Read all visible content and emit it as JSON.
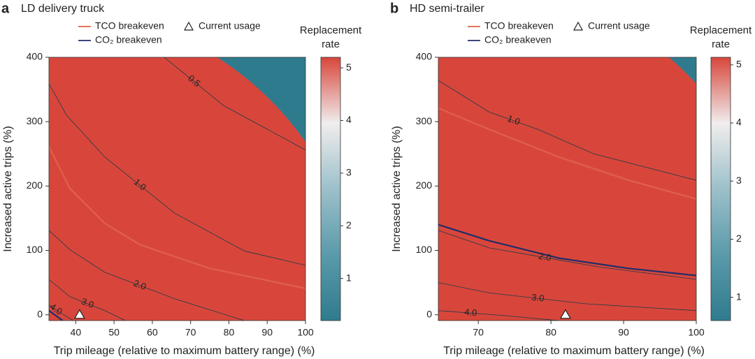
{
  "chart_data": [
    {
      "type": "contour",
      "panel_label": "a",
      "title": "LD delivery truck",
      "x_label": "Trip mileage (relative to maximum battery range) (%)",
      "y_label": "Increased active trips (%)",
      "xlim": [
        33,
        100
      ],
      "xticks": [
        40,
        50,
        60,
        70,
        80,
        90,
        100
      ],
      "ylim": [
        -9,
        400
      ],
      "yticks": [
        0,
        100,
        200,
        300,
        400
      ],
      "series": [
        {
          "name": "TCO breakeven",
          "color": "#e0604a",
          "x": [
            33,
            38.5,
            47.6,
            56.7,
            75,
            100
          ],
          "y": [
            261,
            196,
            142,
            109,
            72,
            41
          ]
        },
        {
          "name": "CO₂ breakeven",
          "color": "#1f2d6b",
          "x": [
            33,
            36.6
          ],
          "y": [
            6.5,
            -9
          ]
        }
      ],
      "contours": [
        {
          "label": "0.5",
          "x": [
            63.1,
            78.6,
            100
          ],
          "y": [
            400,
            325,
            256
          ]
        },
        {
          "label": "1.0",
          "x": [
            33,
            37.6,
            47.6,
            65.8,
            84.1,
            100
          ],
          "y": [
            359,
            310,
            245,
            158,
            99,
            77
          ]
        },
        {
          "label": "2.0",
          "x": [
            33,
            38.5,
            47.6,
            65.8,
            78.6,
            84
          ],
          "y": [
            131,
            101,
            66,
            25,
            1,
            -9
          ]
        },
        {
          "label": "3.0",
          "x": [
            33,
            38.5,
            47.6,
            53
          ],
          "y": [
            55,
            28,
            6.5,
            -9
          ]
        },
        {
          "label": "4.0",
          "x": [
            33,
            36.6,
            39.4
          ],
          "y": [
            15,
            1,
            -9
          ]
        }
      ],
      "marker": {
        "name": "Current usage",
        "x": 41,
        "y": 0
      },
      "colorbar": {
        "title": "Replacement rate",
        "lim": [
          0.2,
          5.2
        ],
        "ticks": [
          1,
          2,
          3,
          4,
          5
        ],
        "colors": [
          "#2f7b8e",
          "#5a9aaa",
          "#9cc0ca",
          "#f0eded",
          "#d8463b"
        ]
      }
    },
    {
      "type": "contour",
      "panel_label": "b",
      "title": "HD semi-trailer",
      "x_label": "Trip mileage (relative to maximum battery range) (%)",
      "y_label": "Increased active trips (%)",
      "xlim": [
        64.5,
        100
      ],
      "xticks": [
        70,
        80,
        90,
        100
      ],
      "ylim": [
        -9,
        400
      ],
      "yticks": [
        0,
        100,
        200,
        300,
        400
      ],
      "series": [
        {
          "name": "TCO breakeven",
          "color": "#e0604a",
          "x": [
            64.5,
            71.5,
            81.1,
            90.7,
            100
          ],
          "y": [
            321,
            288,
            245,
            209,
            180
          ]
        },
        {
          "name": "CO₂ breakeven",
          "color": "#1f2d6b",
          "x": [
            64.5,
            71.5,
            81.1,
            90.7,
            100
          ],
          "y": [
            140,
            115,
            88,
            72,
            61
          ]
        }
      ],
      "contours": [
        {
          "label": "1.0",
          "x": [
            64.5,
            71.5,
            78.2,
            85.9,
            100
          ],
          "y": [
            364,
            315,
            288,
            250,
            209
          ]
        },
        {
          "label": "2.0",
          "x": [
            64.5,
            71.5,
            86.8,
            100
          ],
          "y": [
            131,
            104,
            74,
            55
          ]
        },
        {
          "label": "3.0",
          "x": [
            64.5,
            71.5,
            84.9,
            100
          ],
          "y": [
            50,
            34,
            17,
            6.5
          ]
        },
        {
          "label": "4.0",
          "x": [
            64.5,
            73.4,
            81.1
          ],
          "y": [
            6.5,
            -1,
            -9
          ]
        }
      ],
      "marker": {
        "name": "Current usage",
        "x": 82,
        "y": 0
      },
      "colorbar": {
        "title": "Replacement rate",
        "lim": [
          0.6,
          5.13
        ],
        "ticks": [
          1,
          2,
          3,
          4,
          5
        ],
        "colors": [
          "#2f7b8e",
          "#5a9aaa",
          "#9cc0ca",
          "#f0eded",
          "#d8463b"
        ]
      }
    }
  ]
}
